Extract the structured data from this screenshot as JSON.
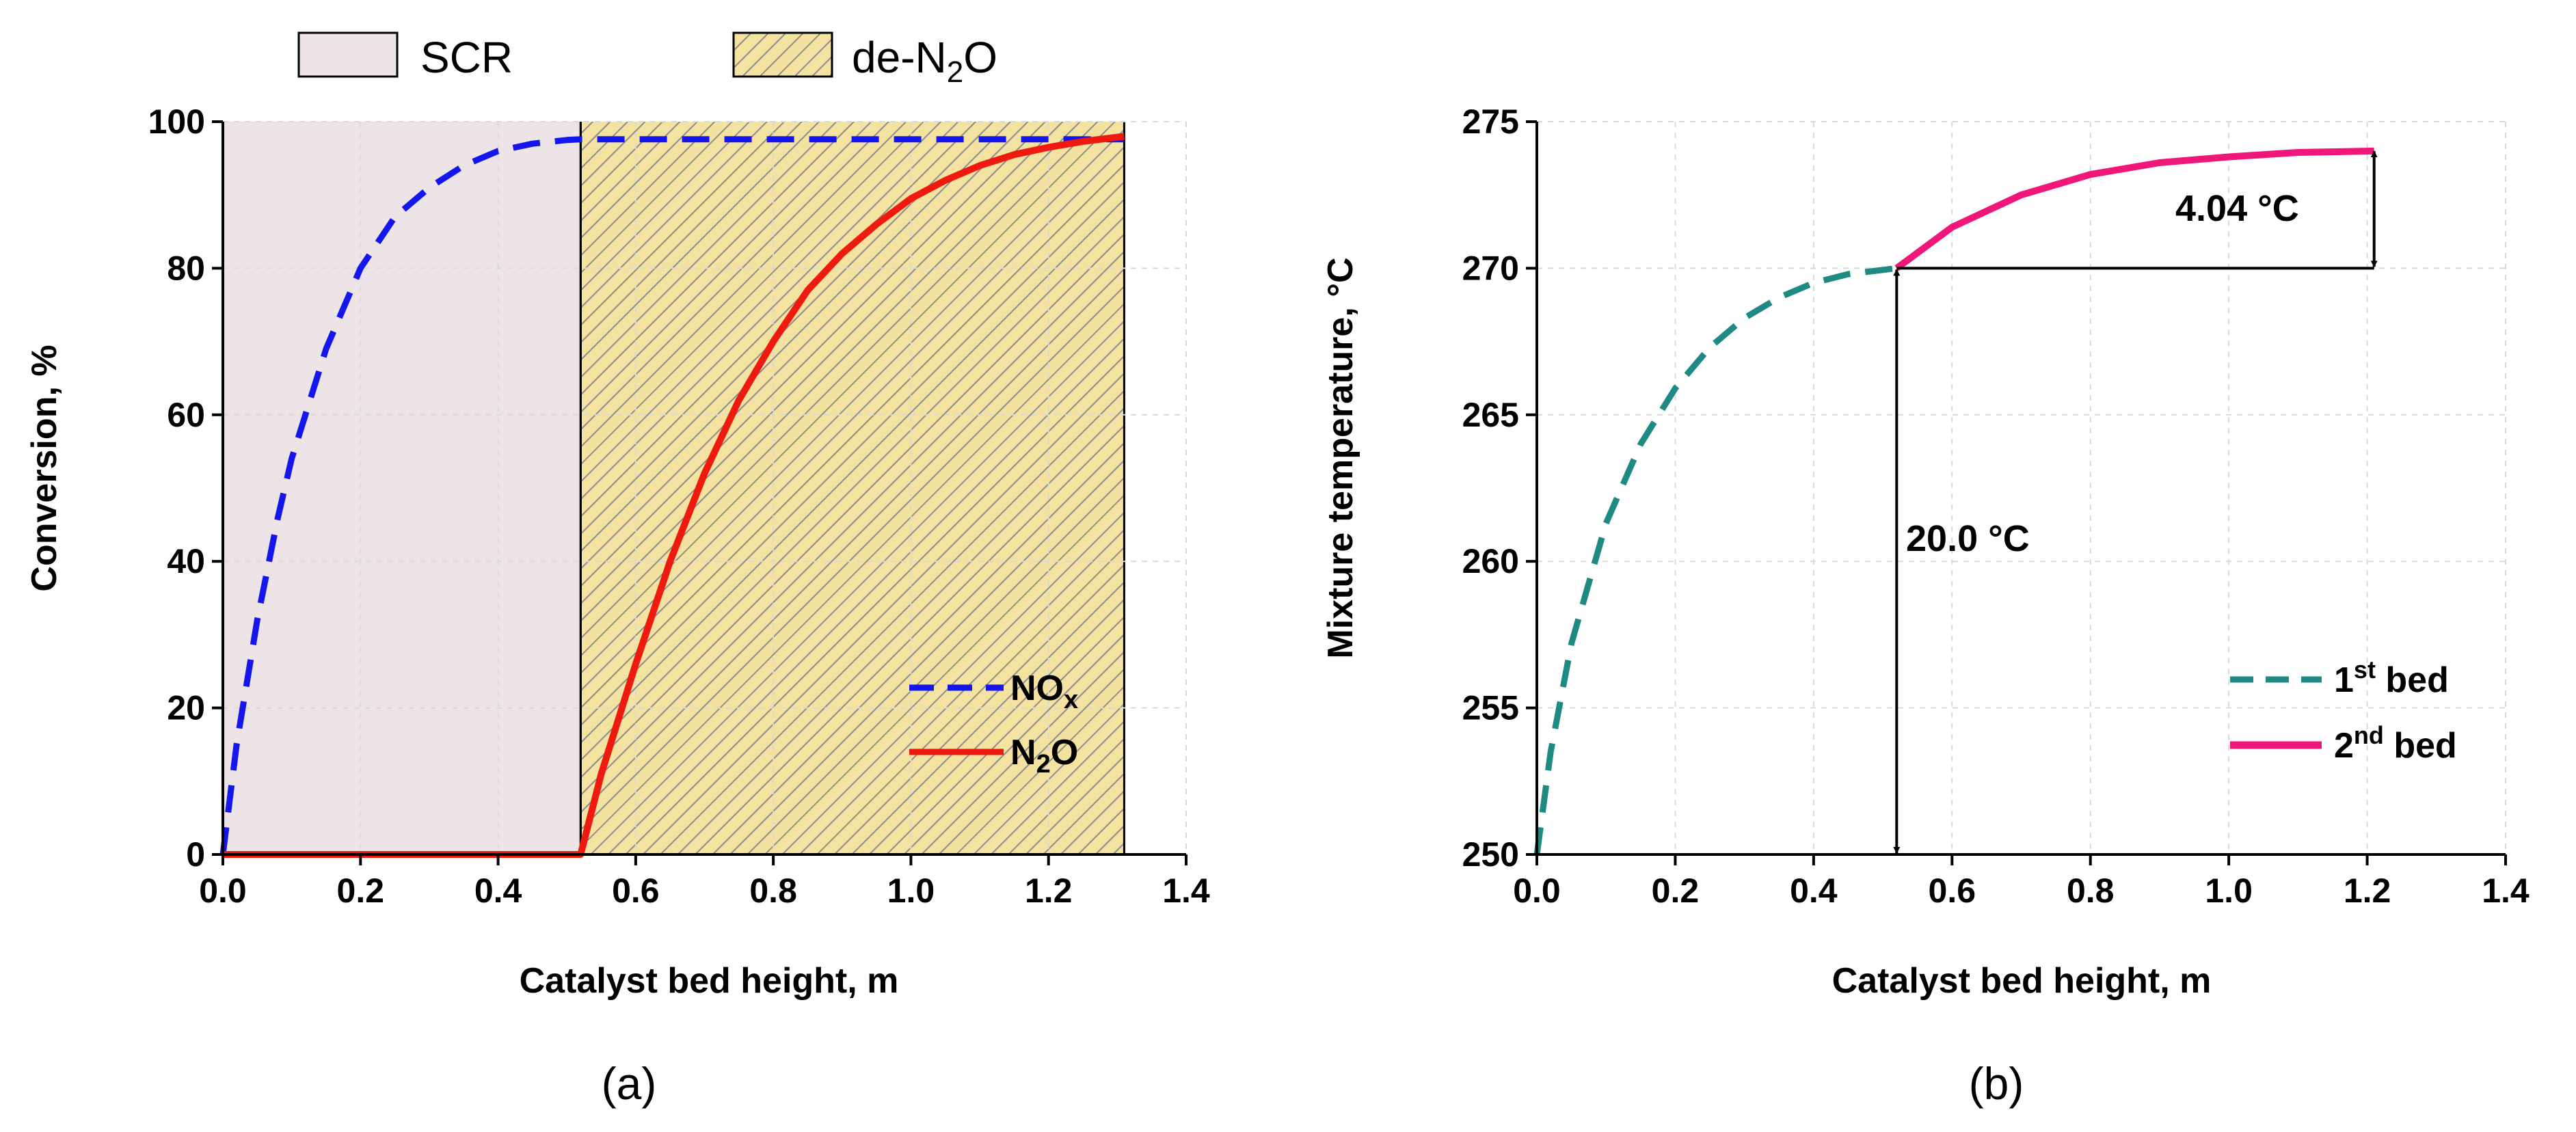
{
  "chart_data": [
    {
      "type": "line",
      "panel": "(a)",
      "xlabel": "Catalyst bed height, m",
      "ylabel": "Conversion, %",
      "xlim": [
        0.0,
        1.4
      ],
      "ylim": [
        0,
        100
      ],
      "xticks": [
        "0.0",
        "0.2",
        "0.4",
        "0.6",
        "0.8",
        "1.0",
        "1.2",
        "1.4"
      ],
      "yticks": [
        "0",
        "20",
        "40",
        "60",
        "80",
        "100"
      ],
      "regions": [
        {
          "name": "SCR",
          "x_start": 0.0,
          "x_end": 0.52,
          "color": "#ede4e7",
          "pattern": "solid"
        },
        {
          "name": "de-N2O",
          "label_main": "de-N",
          "label_sub": "2",
          "label_tail": "O",
          "x_start": 0.52,
          "x_end": 1.31,
          "color": "#f3e2a0",
          "pattern": "hatched"
        }
      ],
      "series": [
        {
          "name": "NOx",
          "label_main": "NO",
          "label_sub": "x",
          "color": "#1515ee",
          "style": "dashed",
          "x": [
            0.0,
            0.02,
            0.05,
            0.08,
            0.1,
            0.15,
            0.2,
            0.25,
            0.3,
            0.35,
            0.4,
            0.45,
            0.5,
            0.52,
            0.6,
            0.8,
            1.0,
            1.2,
            1.31
          ],
          "y": [
            0,
            15,
            32,
            46,
            54,
            69,
            80,
            87,
            91,
            94,
            96,
            97,
            97.5,
            97.6,
            97.6,
            97.6,
            97.6,
            97.6,
            97.6
          ]
        },
        {
          "name": "N2O",
          "label_main": "N",
          "label_sub": "2",
          "label_tail": "O",
          "color": "#ee1a10",
          "style": "solid",
          "x": [
            0.0,
            0.52,
            0.55,
            0.6,
            0.65,
            0.7,
            0.75,
            0.8,
            0.85,
            0.9,
            0.95,
            1.0,
            1.05,
            1.1,
            1.15,
            1.2,
            1.25,
            1.31
          ],
          "y": [
            0,
            0,
            11,
            26,
            40,
            52,
            62,
            70,
            77,
            82,
            86,
            89.5,
            92,
            94,
            95.5,
            96.5,
            97.3,
            98
          ]
        }
      ]
    },
    {
      "type": "line",
      "panel": "(b)",
      "xlabel": "Catalyst bed height, m",
      "ylabel": "Mixture temperature, °C",
      "xlim": [
        0.0,
        1.4
      ],
      "ylim": [
        250,
        275
      ],
      "xticks": [
        "0.0",
        "0.2",
        "0.4",
        "0.6",
        "0.8",
        "1.0",
        "1.2",
        "1.4"
      ],
      "yticks": [
        "250",
        "255",
        "260",
        "265",
        "270",
        "275"
      ],
      "series": [
        {
          "name": "1st bed",
          "label_num": "1",
          "label_sup": "st",
          "label_tail": " bed",
          "color": "#1f8a84",
          "style": "dashed",
          "x": [
            0.0,
            0.02,
            0.05,
            0.1,
            0.15,
            0.2,
            0.25,
            0.3,
            0.35,
            0.4,
            0.45,
            0.52
          ],
          "y": [
            250,
            253.5,
            257.2,
            261.3,
            264,
            265.9,
            267.3,
            268.3,
            269.0,
            269.5,
            269.8,
            270.0
          ]
        },
        {
          "name": "2nd bed",
          "label_num": "2",
          "label_sup": "nd",
          "label_tail": " bed",
          "color": "#f0167a",
          "style": "solid",
          "x": [
            0.52,
            0.6,
            0.7,
            0.8,
            0.9,
            1.0,
            1.1,
            1.21
          ],
          "y": [
            270.0,
            271.4,
            272.5,
            273.2,
            273.6,
            273.8,
            273.95,
            274.0
          ]
        }
      ],
      "annotations": [
        {
          "text": "20.0 °C",
          "from": [
            0.52,
            250
          ],
          "to": [
            0.52,
            270
          ]
        },
        {
          "text": "4.04 °C",
          "from": [
            1.21,
            270
          ],
          "to": [
            1.21,
            274.04
          ]
        }
      ]
    }
  ]
}
